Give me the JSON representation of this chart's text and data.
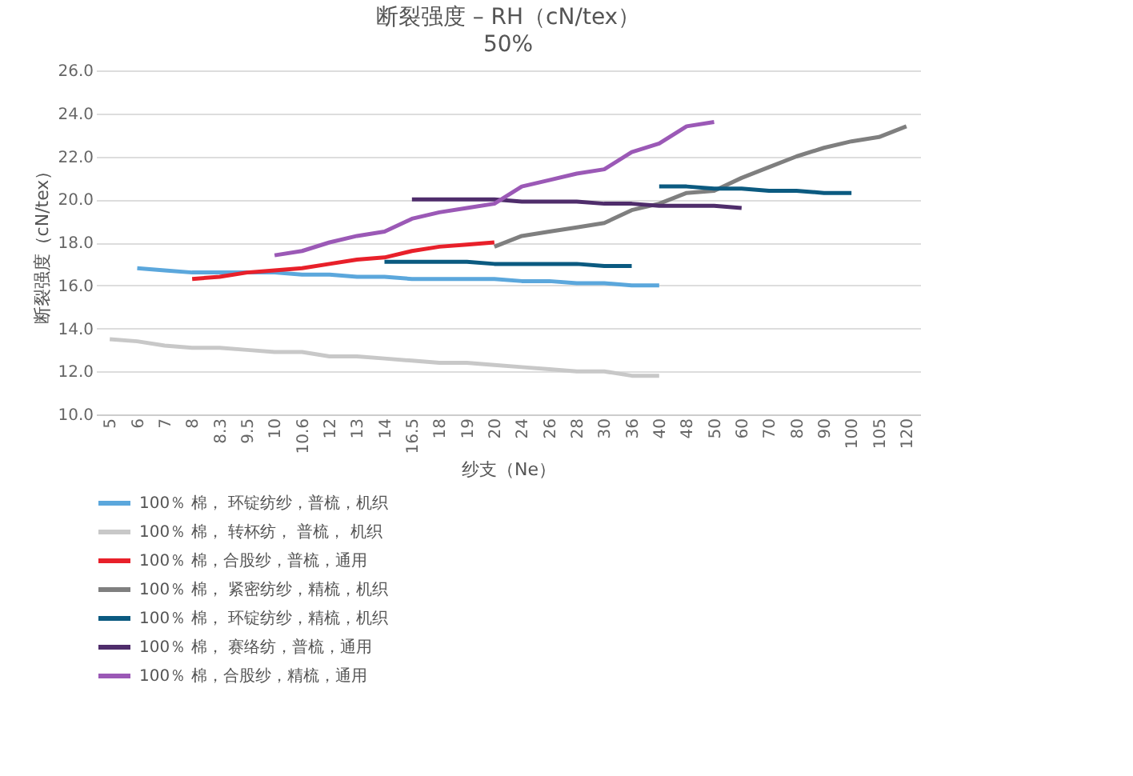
{
  "chart_data": {
    "type": "line",
    "title": "断裂强度 – RH（cN/tex）",
    "subtitle": "50%",
    "xlabel": "纱支（Ne）",
    "ylabel": "断裂强度（cN/tex）",
    "categories": [
      "5",
      "6",
      "7",
      "8",
      "8.3",
      "9.5",
      "10",
      "10.6",
      "12",
      "13",
      "14",
      "16.5",
      "18",
      "19",
      "20",
      "24",
      "26",
      "28",
      "30",
      "36",
      "40",
      "48",
      "50",
      "60",
      "70",
      "80",
      "90",
      "100",
      "105",
      "120"
    ],
    "series": [
      {
        "name": "100％ 棉， 环锭纺纱，普梳，机织",
        "color": "#5ba7dc",
        "values": [
          null,
          16.8,
          16.7,
          16.6,
          16.6,
          16.6,
          16.6,
          16.5,
          16.5,
          16.4,
          16.4,
          16.3,
          16.3,
          16.3,
          16.3,
          16.2,
          16.2,
          16.1,
          16.1,
          16.0,
          16.0,
          null,
          null,
          null,
          null,
          null,
          null,
          null,
          null,
          null
        ]
      },
      {
        "name": "100％ 棉， 转杯纺， 普梳， 机织",
        "color": "#c8c8c8",
        "values": [
          13.5,
          13.4,
          13.2,
          13.1,
          13.1,
          13.0,
          12.9,
          12.9,
          12.7,
          12.7,
          12.6,
          12.5,
          12.4,
          12.4,
          12.3,
          12.2,
          12.1,
          12.0,
          12.0,
          11.8,
          11.8,
          null,
          null,
          null,
          null,
          null,
          null,
          null,
          null,
          null
        ]
      },
      {
        "name": "100％ 棉，合股纱，普梳，通用",
        "color": "#e8202a",
        "values": [
          null,
          null,
          null,
          16.3,
          16.4,
          16.6,
          16.7,
          16.8,
          17.0,
          17.2,
          17.3,
          17.6,
          17.8,
          17.9,
          18.0,
          null,
          null,
          null,
          null,
          null,
          null,
          null,
          null,
          null,
          null,
          null,
          null,
          null,
          null,
          null
        ]
      },
      {
        "name": "100％ 棉， 紧密纺纱，精梳，机织",
        "color": "#7f7f7f",
        "values": [
          null,
          null,
          null,
          null,
          null,
          null,
          null,
          null,
          null,
          null,
          null,
          null,
          null,
          null,
          17.8,
          18.3,
          18.5,
          18.7,
          18.9,
          19.5,
          19.8,
          20.3,
          20.4,
          21.0,
          21.5,
          22.0,
          22.4,
          22.7,
          22.9,
          23.4
        ]
      },
      {
        "name": "100％ 棉， 环锭纺纱，精梳，机织",
        "color": "#0b5a80",
        "values": [
          null,
          null,
          null,
          null,
          null,
          null,
          null,
          null,
          null,
          null,
          17.1,
          17.1,
          17.1,
          17.1,
          17.0,
          17.0,
          17.0,
          17.0,
          16.9,
          16.9,
          null,
          null,
          null,
          null,
          null,
          null,
          null,
          null,
          null,
          null
        ]
      },
      {
        "name": "100％ 棉， 赛络纺，普梳，通用",
        "color": "#4f2d6b",
        "values": [
          null,
          null,
          null,
          null,
          null,
          null,
          null,
          null,
          null,
          null,
          null,
          20.0,
          20.0,
          20.0,
          20.0,
          19.9,
          19.9,
          19.9,
          19.8,
          19.8,
          19.7,
          19.7,
          19.7,
          19.6,
          null,
          null,
          null,
          null,
          null,
          null
        ]
      },
      {
        "name": "100％ 棉，合股纱，精梳，通用",
        "color": "#9b59b6",
        "values": [
          null,
          null,
          null,
          null,
          null,
          null,
          17.4,
          17.6,
          18.0,
          18.3,
          18.5,
          19.1,
          19.4,
          19.6,
          19.8,
          20.6,
          20.9,
          21.2,
          21.4,
          22.2,
          22.6,
          23.4,
          23.6,
          null,
          null,
          null,
          null,
          null,
          null,
          null
        ]
      },
      {
        "color": "#0b5a80",
        "values": [
          null,
          null,
          null,
          null,
          null,
          null,
          null,
          null,
          null,
          null,
          null,
          null,
          null,
          null,
          null,
          null,
          null,
          null,
          null,
          null,
          20.6,
          20.6,
          20.5,
          20.5,
          20.4,
          20.4,
          20.3,
          20.3,
          null,
          null
        ]
      }
    ],
    "ylim": [
      10,
      26
    ],
    "yticks": [
      {
        "value": 10,
        "label": "10.0"
      },
      {
        "value": 12,
        "label": "12.0"
      },
      {
        "value": 14,
        "label": "14.0"
      },
      {
        "value": 16,
        "label": "16.0"
      },
      {
        "value": 18,
        "label": "18.0"
      },
      {
        "value": 20,
        "label": "20.0"
      },
      {
        "value": 22,
        "label": "22.0"
      },
      {
        "value": 24,
        "label": "24.0"
      },
      {
        "value": 26,
        "label": "26.0"
      }
    ],
    "grid": "y",
    "legend": "bottom",
    "line_style": "solid",
    "marker": "none"
  }
}
